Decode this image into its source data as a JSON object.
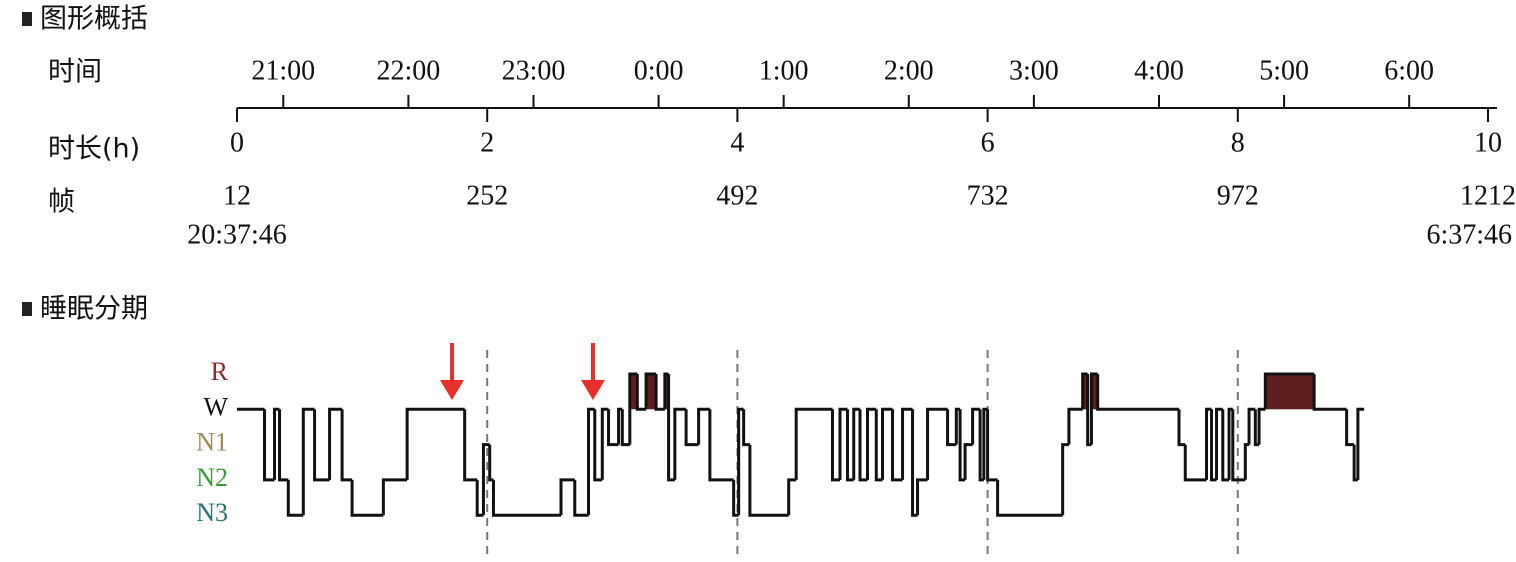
{
  "header": {
    "title": "图形概括"
  },
  "timeline": {
    "row_labels": [
      "时间",
      "时长(h)",
      "帧"
    ],
    "xlim": [
      0,
      10
    ],
    "clock_ticks": [
      {
        "value": 0.37,
        "label": "21:00"
      },
      {
        "value": 1.37,
        "label": "22:00"
      },
      {
        "value": 2.37,
        "label": "23:00"
      },
      {
        "value": 3.37,
        "label": "0:00"
      },
      {
        "value": 4.37,
        "label": "1:00"
      },
      {
        "value": 5.37,
        "label": "2:00"
      },
      {
        "value": 6.37,
        "label": "3:00"
      },
      {
        "value": 7.37,
        "label": "4:00"
      },
      {
        "value": 8.37,
        "label": "5:00"
      },
      {
        "value": 9.37,
        "label": "6:00"
      }
    ],
    "duration_ticks": [
      0,
      2,
      4,
      6,
      8,
      10
    ],
    "frames": [
      12,
      252,
      492,
      732,
      972,
      1212
    ],
    "start_time": "20:37:46",
    "end_time": "6:37:46"
  },
  "section2": {
    "title": "睡眠分期"
  },
  "chart_data": {
    "type": "step",
    "stages": [
      "R",
      "W",
      "N1",
      "N2",
      "N3"
    ],
    "stage_colors": [
      "#8b2a2a",
      "#111111",
      "#9a8a5a",
      "#3a9a3a",
      "#2a7272"
    ],
    "line_color": "#111111",
    "r_fill": "#5e1f1f",
    "xlim": [
      0,
      10
    ],
    "x": [
      0,
      0.22,
      0.3,
      0.34,
      0.41,
      0.53,
      0.62,
      0.74,
      0.84,
      0.92,
      1.17,
      1.36,
      1.82,
      1.92,
      1.97,
      2.02,
      2.05,
      2.59,
      2.7,
      2.81,
      2.86,
      2.92,
      2.97,
      3.05,
      3.08,
      3.14,
      3.2,
      3.27,
      3.35,
      3.42,
      3.45,
      3.5,
      3.59,
      3.69,
      3.78,
      3.97,
      4.01,
      4.05,
      4.1,
      4.41,
      4.47,
      4.76,
      4.82,
      4.88,
      4.93,
      4.98,
      5.04,
      5.11,
      5.16,
      5.24,
      5.32,
      5.4,
      5.44,
      5.52,
      5.68,
      5.75,
      5.78,
      5.82,
      5.88,
      5.94,
      5.97,
      6.0,
      6.08,
      6.6,
      6.65,
      6.76,
      6.8,
      6.83,
      6.88,
      7.53,
      7.58,
      7.75,
      7.79,
      7.83,
      7.88,
      7.93,
      7.96,
      8.06,
      8.09,
      8.14,
      8.17,
      8.22,
      8.61,
      8.87,
      8.93,
      8.96,
      9.01
    ],
    "values": [
      "W",
      "N2",
      "W",
      "N2",
      "N3",
      "W",
      "N2",
      "W",
      "N2",
      "N3",
      "N2",
      "W",
      "N2",
      "N3",
      "N1",
      "N2",
      "N3",
      "N2",
      "N3",
      "W",
      "N2",
      "W",
      "N1",
      "W",
      "N1",
      "R",
      "W",
      "R",
      "W",
      "R",
      "N2",
      "W",
      "N1",
      "W",
      "N2",
      "N3",
      "W",
      "N1",
      "N3",
      "N2",
      "W",
      "N2",
      "W",
      "N2",
      "W",
      "N2",
      "W",
      "N2",
      "W",
      "N2",
      "W",
      "N3",
      "N2",
      "W",
      "N1",
      "W",
      "N2",
      "N1",
      "W",
      "N2",
      "W",
      "N2",
      "N3",
      "N1",
      "W",
      "R",
      "N1",
      "R",
      "W",
      "N1",
      "N2",
      "W",
      "N2",
      "W",
      "N2",
      "W",
      "N2",
      "N1",
      "W",
      "N1",
      "W",
      "R",
      "W",
      "N1",
      "N2",
      "W",
      "W"
    ]
  }
}
